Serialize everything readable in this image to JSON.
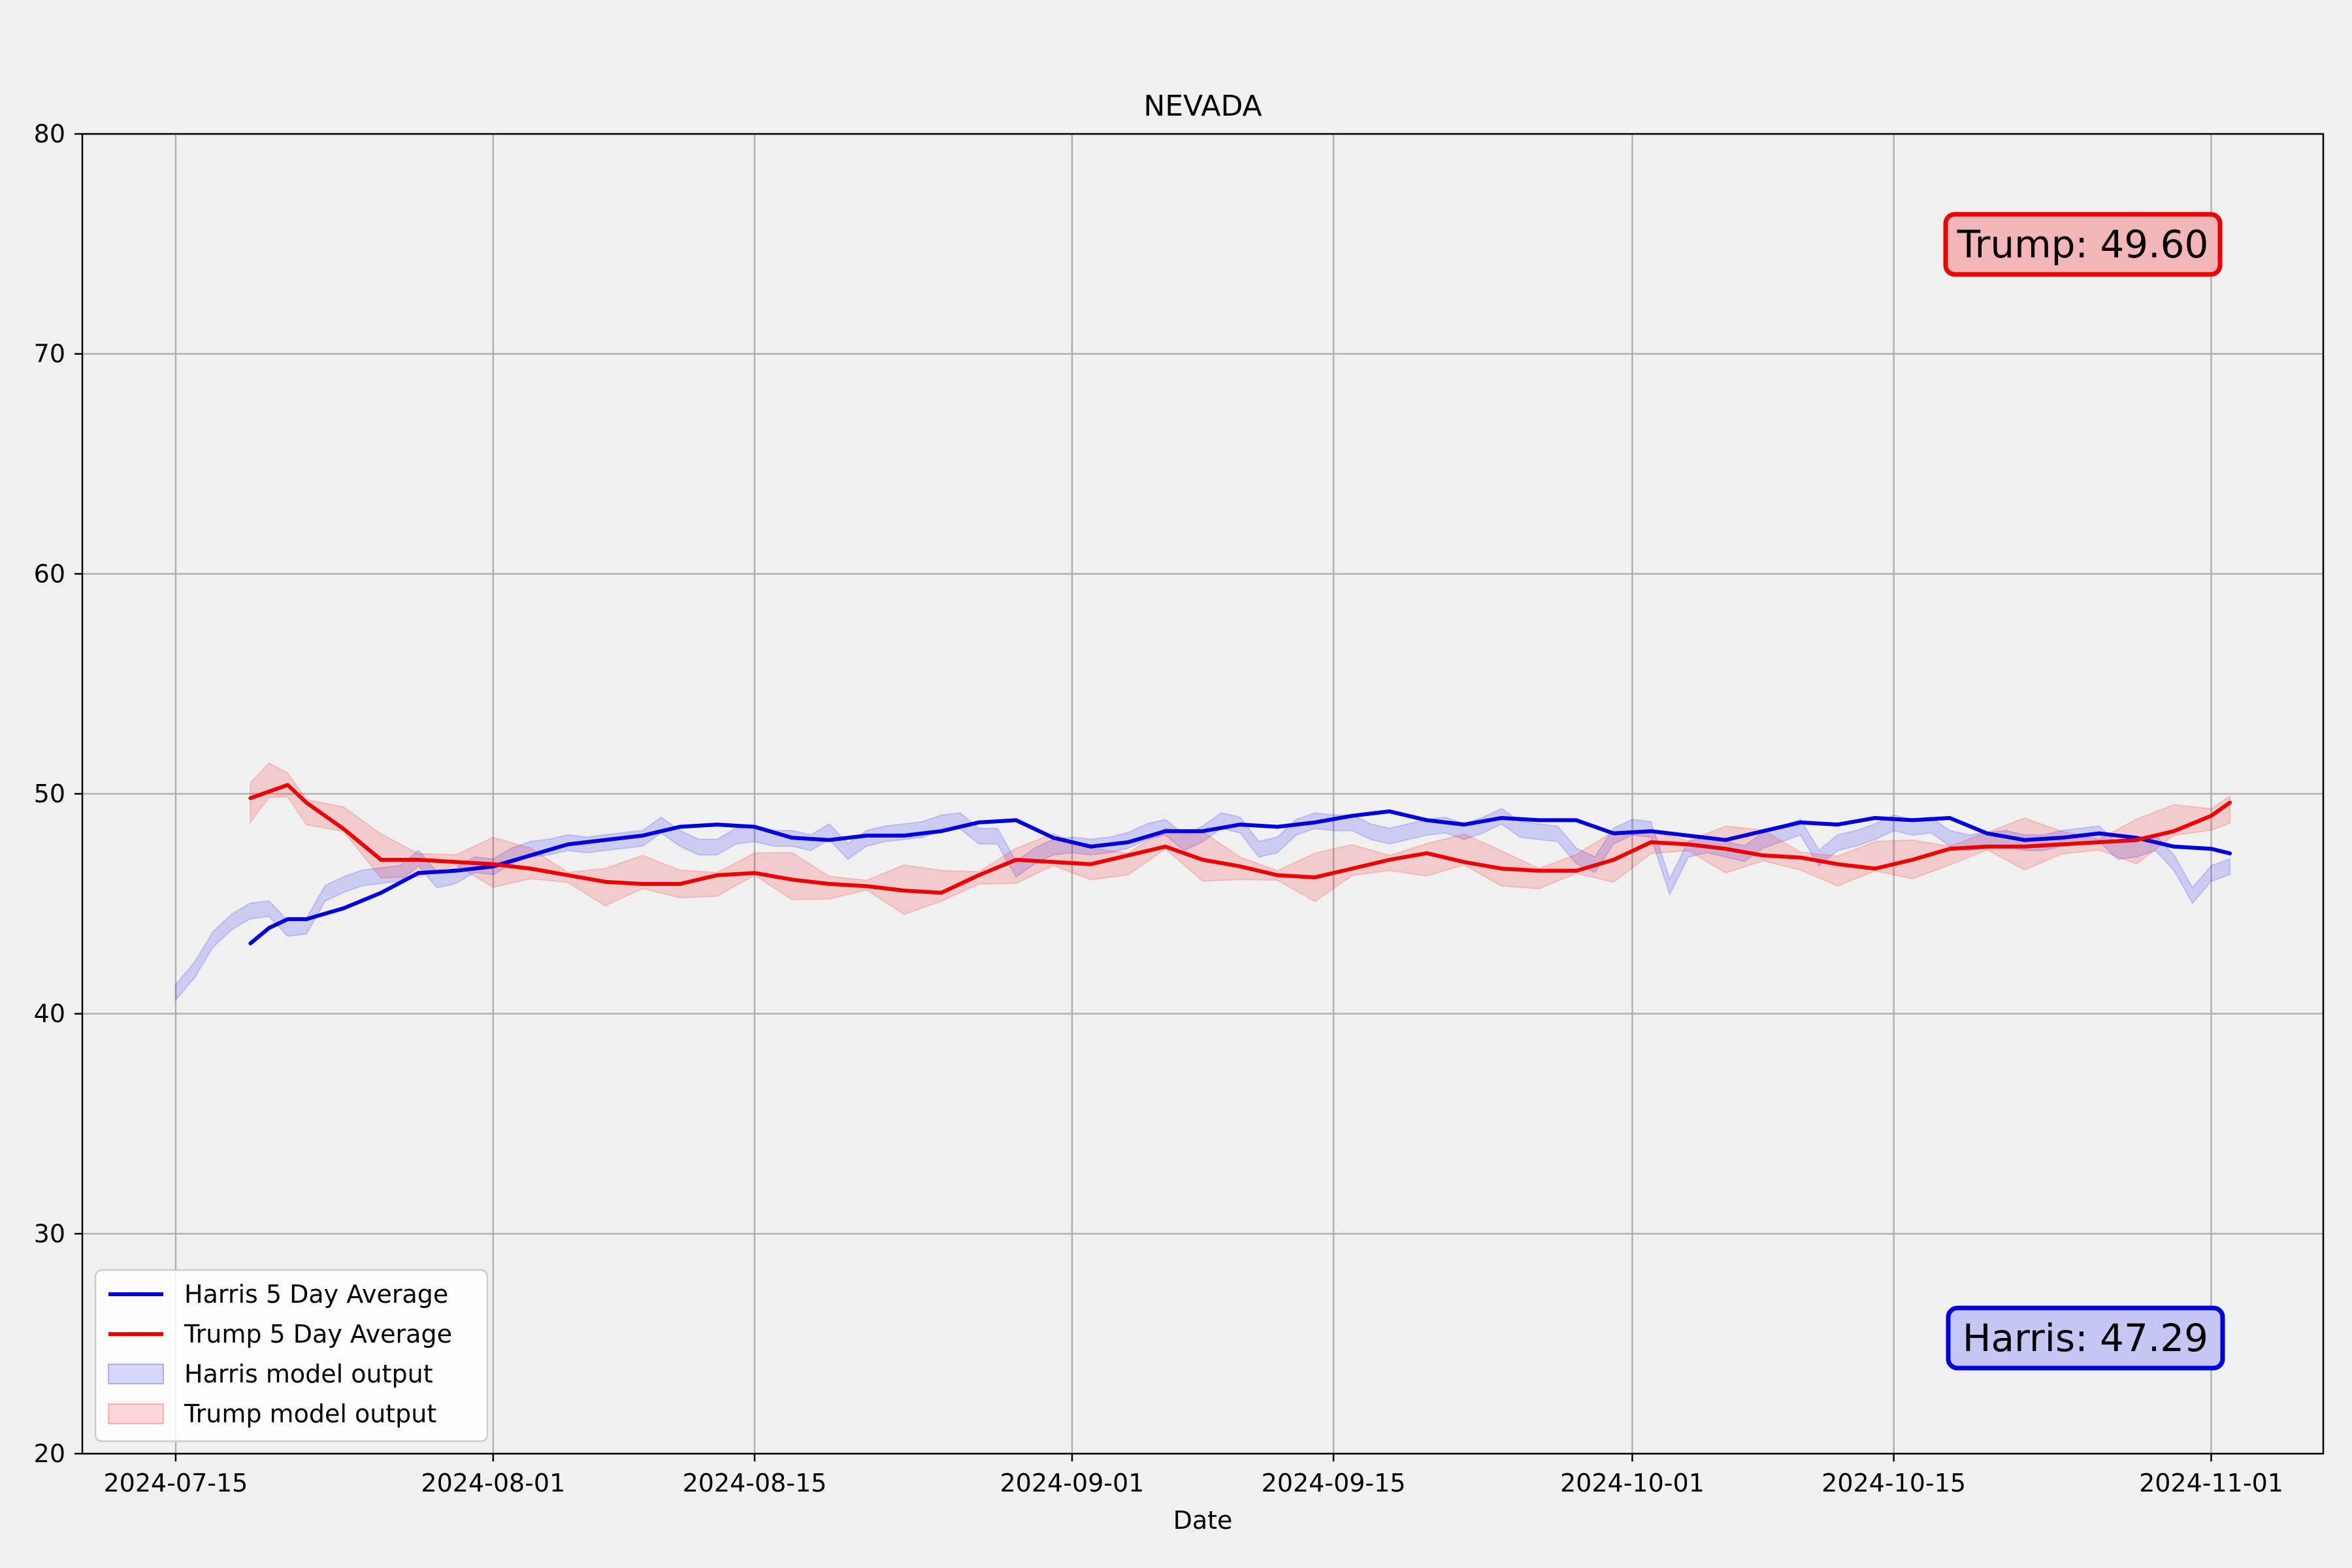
{
  "chart_data": {
    "type": "line",
    "title": "NEVADA",
    "xlabel": "Date",
    "ylabel": "",
    "xlim": [
      "2024-07-10",
      "2024-11-07"
    ],
    "ylim": [
      20,
      80
    ],
    "x_ticks": [
      "2024-07-15",
      "2024-08-01",
      "2024-08-15",
      "2024-09-01",
      "2024-09-15",
      "2024-10-01",
      "2024-10-15",
      "2024-11-01"
    ],
    "y_ticks": [
      20,
      30,
      40,
      50,
      60,
      70,
      80
    ],
    "grid": true,
    "legend_position": "lower-left",
    "legend": [
      {
        "label": "Harris 5 Day Average",
        "kind": "line",
        "color": "#0000dd"
      },
      {
        "label": "Trump 5 Day Average",
        "kind": "line",
        "color": "#ee0000"
      },
      {
        "label": "Harris model output",
        "kind": "band",
        "color": "#0000ff"
      },
      {
        "label": "Trump model output",
        "kind": "band",
        "color": "#ff0000"
      }
    ],
    "annotations": [
      {
        "text": "Trump: 49.60",
        "position": "top-right",
        "face": "#f2b6b8",
        "edge": "#ee0000"
      },
      {
        "text": "Harris: 47.29",
        "position": "bottom-right",
        "face": "#c6c6f4",
        "edge": "#0000dd"
      }
    ],
    "series": [
      {
        "name": "Harris 5 Day Average",
        "color": "#0000dd",
        "x": [
          "2024-07-19",
          "2024-07-20",
          "2024-07-21",
          "2024-07-22",
          "2024-07-24",
          "2024-07-26",
          "2024-07-28",
          "2024-07-30",
          "2024-08-01",
          "2024-08-03",
          "2024-08-05",
          "2024-08-07",
          "2024-08-09",
          "2024-08-11",
          "2024-08-13",
          "2024-08-15",
          "2024-08-17",
          "2024-08-19",
          "2024-08-21",
          "2024-08-23",
          "2024-08-25",
          "2024-08-27",
          "2024-08-29",
          "2024-08-31",
          "2024-09-02",
          "2024-09-04",
          "2024-09-06",
          "2024-09-08",
          "2024-09-10",
          "2024-09-12",
          "2024-09-14",
          "2024-09-16",
          "2024-09-18",
          "2024-09-20",
          "2024-09-22",
          "2024-09-24",
          "2024-09-26",
          "2024-09-28",
          "2024-09-30",
          "2024-10-02",
          "2024-10-04",
          "2024-10-06",
          "2024-10-08",
          "2024-10-10",
          "2024-10-12",
          "2024-10-14",
          "2024-10-16",
          "2024-10-18",
          "2024-10-20",
          "2024-10-22",
          "2024-10-24",
          "2024-10-26",
          "2024-10-28",
          "2024-10-30",
          "2024-11-01",
          "2024-11-02"
        ],
        "values": [
          43.2,
          43.9,
          44.3,
          44.3,
          44.8,
          45.5,
          46.4,
          46.5,
          46.7,
          47.2,
          47.7,
          47.9,
          48.1,
          48.5,
          48.6,
          48.5,
          48.0,
          47.9,
          48.1,
          48.1,
          48.3,
          48.7,
          48.8,
          48.0,
          47.6,
          47.8,
          48.3,
          48.3,
          48.6,
          48.5,
          48.7,
          49.0,
          49.2,
          48.8,
          48.6,
          48.9,
          48.8,
          48.8,
          48.2,
          48.3,
          48.1,
          47.9,
          48.3,
          48.7,
          48.6,
          48.9,
          48.8,
          48.9,
          48.2,
          47.9,
          48.0,
          48.2,
          48.0,
          47.6,
          47.5,
          47.29
        ]
      },
      {
        "name": "Trump 5 Day Average",
        "color": "#ee0000",
        "x": [
          "2024-07-19",
          "2024-07-20",
          "2024-07-21",
          "2024-07-22",
          "2024-07-24",
          "2024-07-26",
          "2024-07-28",
          "2024-07-30",
          "2024-08-01",
          "2024-08-03",
          "2024-08-05",
          "2024-08-07",
          "2024-08-09",
          "2024-08-11",
          "2024-08-13",
          "2024-08-15",
          "2024-08-17",
          "2024-08-19",
          "2024-08-21",
          "2024-08-23",
          "2024-08-25",
          "2024-08-27",
          "2024-08-29",
          "2024-08-31",
          "2024-09-02",
          "2024-09-04",
          "2024-09-06",
          "2024-09-08",
          "2024-09-10",
          "2024-09-12",
          "2024-09-14",
          "2024-09-16",
          "2024-09-18",
          "2024-09-20",
          "2024-09-22",
          "2024-09-24",
          "2024-09-26",
          "2024-09-28",
          "2024-09-30",
          "2024-10-02",
          "2024-10-04",
          "2024-10-06",
          "2024-10-08",
          "2024-10-10",
          "2024-10-12",
          "2024-10-14",
          "2024-10-16",
          "2024-10-18",
          "2024-10-20",
          "2024-10-22",
          "2024-10-24",
          "2024-10-26",
          "2024-10-28",
          "2024-10-30",
          "2024-11-01",
          "2024-11-02"
        ],
        "values": [
          49.8,
          50.1,
          50.4,
          49.6,
          48.4,
          47.0,
          47.0,
          46.9,
          46.8,
          46.6,
          46.3,
          46.0,
          45.9,
          45.9,
          46.3,
          46.4,
          46.1,
          45.9,
          45.8,
          45.6,
          45.5,
          46.3,
          47.0,
          46.9,
          46.8,
          47.2,
          47.6,
          47.0,
          46.7,
          46.3,
          46.2,
          46.6,
          47.0,
          47.3,
          46.9,
          46.6,
          46.5,
          46.5,
          47.0,
          47.8,
          47.7,
          47.5,
          47.2,
          47.1,
          46.8,
          46.6,
          47.0,
          47.5,
          47.6,
          47.6,
          47.7,
          47.8,
          47.9,
          48.3,
          49.0,
          49.6
        ]
      }
    ],
    "bands": [
      {
        "name": "Harris model output",
        "color": "#0000ff",
        "x": [
          "2024-07-15",
          "2024-07-16",
          "2024-07-17",
          "2024-07-18",
          "2024-07-19",
          "2024-07-20",
          "2024-07-21",
          "2024-07-22",
          "2024-07-23",
          "2024-07-24",
          "2024-07-25",
          "2024-07-26",
          "2024-07-27",
          "2024-07-28",
          "2024-07-29",
          "2024-07-30",
          "2024-07-31",
          "2024-08-01",
          "2024-08-02",
          "2024-08-03",
          "2024-08-04",
          "2024-08-05",
          "2024-08-06",
          "2024-08-07",
          "2024-08-08",
          "2024-08-09",
          "2024-08-10",
          "2024-08-11",
          "2024-08-12",
          "2024-08-13",
          "2024-08-14",
          "2024-08-15",
          "2024-08-16",
          "2024-08-17",
          "2024-08-18",
          "2024-08-19",
          "2024-08-20",
          "2024-08-21",
          "2024-08-22",
          "2024-08-23",
          "2024-08-24",
          "2024-08-25",
          "2024-08-26",
          "2024-08-27",
          "2024-08-28",
          "2024-08-29",
          "2024-08-30",
          "2024-08-31",
          "2024-09-01",
          "2024-09-02",
          "2024-09-03",
          "2024-09-04",
          "2024-09-05",
          "2024-09-06",
          "2024-09-07",
          "2024-09-08",
          "2024-09-09",
          "2024-09-10",
          "2024-09-11",
          "2024-09-12",
          "2024-09-13",
          "2024-09-14",
          "2024-09-15",
          "2024-09-16",
          "2024-09-17",
          "2024-09-18",
          "2024-09-19",
          "2024-09-20",
          "2024-09-21",
          "2024-09-22",
          "2024-09-23",
          "2024-09-24",
          "2024-09-25",
          "2024-09-26",
          "2024-09-27",
          "2024-09-28",
          "2024-09-29",
          "2024-09-30",
          "2024-10-01",
          "2024-10-02",
          "2024-10-03",
          "2024-10-04",
          "2024-10-05",
          "2024-10-06",
          "2024-10-07",
          "2024-10-08",
          "2024-10-09",
          "2024-10-10",
          "2024-10-11",
          "2024-10-12",
          "2024-10-13",
          "2024-10-14",
          "2024-10-15",
          "2024-10-16",
          "2024-10-17",
          "2024-10-18",
          "2024-10-19",
          "2024-10-20",
          "2024-10-21",
          "2024-10-22",
          "2024-10-23",
          "2024-10-24",
          "2024-10-25",
          "2024-10-26",
          "2024-10-27",
          "2024-10-28",
          "2024-10-29",
          "2024-10-30",
          "2024-10-31",
          "2024-11-01",
          "2024-11-02"
        ],
        "low": [
          40.8,
          41.8,
          43.2,
          44.0,
          44.5,
          44.6,
          43.7,
          43.8,
          45.3,
          45.7,
          46.0,
          46.1,
          46.2,
          46.9,
          45.9,
          46.1,
          46.6,
          46.5,
          47.0,
          47.3,
          47.4,
          47.6,
          47.5,
          47.6,
          47.7,
          47.8,
          48.4,
          47.8,
          47.4,
          47.4,
          47.9,
          48.0,
          47.8,
          47.8,
          47.6,
          48.1,
          47.2,
          47.8,
          48.0,
          48.1,
          48.2,
          48.5,
          48.6,
          47.9,
          47.9,
          46.4,
          47.0,
          47.4,
          47.5,
          47.4,
          47.5,
          47.7,
          48.1,
          48.3,
          47.6,
          48.0,
          48.6,
          48.4,
          47.3,
          47.5,
          48.3,
          48.6,
          48.5,
          48.5,
          48.1,
          47.9,
          48.1,
          48.3,
          48.4,
          48.1,
          48.4,
          48.8,
          48.2,
          48.1,
          48.0,
          47.0,
          46.6,
          47.9,
          48.3,
          48.2,
          45.6,
          47.3,
          47.5,
          47.3,
          47.1,
          47.7,
          48.0,
          48.3,
          46.9,
          47.6,
          47.8,
          48.1,
          48.5,
          48.3,
          48.4,
          47.8,
          47.6,
          47.7,
          47.8,
          47.6,
          47.6,
          47.8,
          47.9,
          48.0,
          47.2,
          47.3,
          47.6,
          46.7,
          45.2,
          46.2,
          46.5
        ]
      }
    ]
  }
}
